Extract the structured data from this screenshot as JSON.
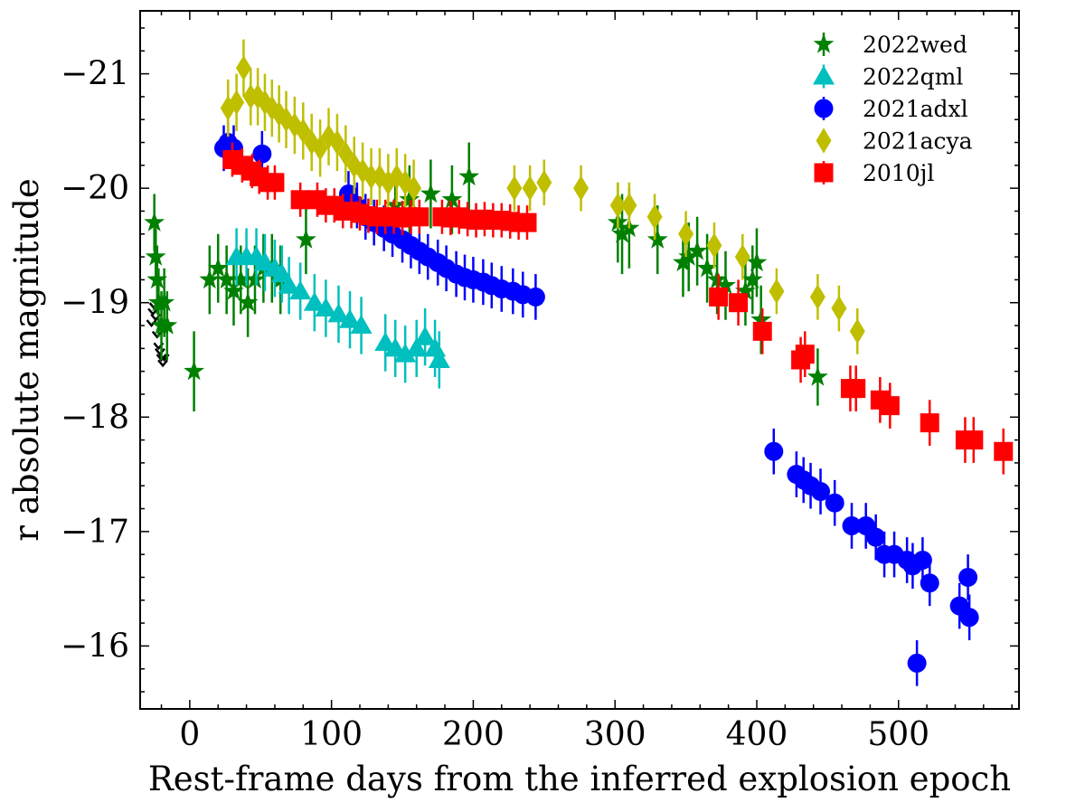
{
  "chart_data": {
    "type": "scatter",
    "xlabel": "Rest-frame days from the inferred explosion epoch",
    "ylabel": "r absolute magnitude",
    "xlim": [
      -35,
      585
    ],
    "ylim": [
      -15.45,
      -21.55
    ],
    "y_inverted": true,
    "xticks": [
      0,
      100,
      200,
      300,
      400,
      500
    ],
    "xtick_labels": [
      "0",
      "100",
      "200",
      "300",
      "400",
      "500"
    ],
    "yticks": [
      -21,
      -20,
      -19,
      -18,
      -17,
      -16
    ],
    "ytick_labels": [
      "−21",
      "−20",
      "−19",
      "−18",
      "−17",
      "−16"
    ],
    "grid": false,
    "legend_position": "top-right",
    "series": [
      {
        "name": "2022wed",
        "marker": "star",
        "color": "#008000",
        "points": [
          [
            -25,
            -19.7,
            0.25
          ],
          [
            -24,
            -19.4,
            0.25
          ],
          [
            -23,
            -19.2,
            0.3
          ],
          [
            -22,
            -19.0,
            0.3
          ],
          [
            -20,
            -18.8,
            0.3
          ],
          [
            -18,
            -19.0,
            0.3
          ],
          [
            -16,
            -18.8,
            0.3
          ],
          [
            3,
            -18.4,
            0.35
          ],
          [
            14,
            -19.2,
            0.3
          ],
          [
            20,
            -19.3,
            0.3
          ],
          [
            26,
            -19.2,
            0.3
          ],
          [
            31,
            -19.1,
            0.3
          ],
          [
            36,
            -19.2,
            0.3
          ],
          [
            41,
            -19.0,
            0.3
          ],
          [
            46,
            -19.2,
            0.3
          ],
          [
            52,
            -19.3,
            0.3
          ],
          [
            58,
            -19.3,
            0.3
          ],
          [
            64,
            -19.2,
            0.3
          ],
          [
            82,
            -19.55,
            0.3
          ],
          [
            145,
            -19.85,
            0.3
          ],
          [
            155,
            -19.9,
            0.3
          ],
          [
            170,
            -19.95,
            0.3
          ],
          [
            185,
            -19.9,
            0.3
          ],
          [
            197,
            -20.1,
            0.3
          ],
          [
            302,
            -19.7,
            0.35
          ],
          [
            305,
            -19.6,
            0.35
          ],
          [
            310,
            -19.65,
            0.35
          ],
          [
            330,
            -19.55,
            0.3
          ],
          [
            348,
            -19.35,
            0.3
          ],
          [
            352,
            -19.4,
            0.3
          ],
          [
            358,
            -19.45,
            0.3
          ],
          [
            365,
            -19.3,
            0.3
          ],
          [
            372,
            -19.2,
            0.3
          ],
          [
            378,
            -19.15,
            0.3
          ],
          [
            392,
            -19.1,
            0.3
          ],
          [
            397,
            -19.2,
            0.3
          ],
          [
            400,
            -19.35,
            0.3
          ],
          [
            403,
            -18.85,
            0.3
          ],
          [
            443,
            -18.35,
            0.25
          ]
        ]
      },
      {
        "name": "2022qml",
        "marker": "triangle",
        "color": "#00bfbf",
        "points": [
          [
            33,
            -19.4,
            0.25
          ],
          [
            40,
            -19.4,
            0.25
          ],
          [
            47,
            -19.4,
            0.25
          ],
          [
            53,
            -19.35,
            0.25
          ],
          [
            60,
            -19.3,
            0.25
          ],
          [
            65,
            -19.25,
            0.25
          ],
          [
            70,
            -19.15,
            0.25
          ],
          [
            78,
            -19.1,
            0.25
          ],
          [
            88,
            -19.0,
            0.25
          ],
          [
            96,
            -18.95,
            0.25
          ],
          [
            105,
            -18.9,
            0.25
          ],
          [
            113,
            -18.85,
            0.25
          ],
          [
            121,
            -18.8,
            0.25
          ],
          [
            138,
            -18.65,
            0.25
          ],
          [
            145,
            -18.6,
            0.25
          ],
          [
            152,
            -18.55,
            0.25
          ],
          [
            160,
            -18.6,
            0.25
          ],
          [
            166,
            -18.7,
            0.25
          ],
          [
            173,
            -18.6,
            0.25
          ],
          [
            176,
            -18.5,
            0.25
          ]
        ]
      },
      {
        "name": "2021adxl",
        "marker": "circle",
        "color": "#0000ff",
        "points": [
          [
            24,
            -20.35,
            0.2
          ],
          [
            27,
            -20.4,
            0.2
          ],
          [
            31,
            -20.35,
            0.2
          ],
          [
            51,
            -20.3,
            0.2
          ],
          [
            112,
            -19.95,
            0.2
          ],
          [
            118,
            -19.85,
            0.2
          ],
          [
            124,
            -19.75,
            0.2
          ],
          [
            130,
            -19.7,
            0.2
          ],
          [
            137,
            -19.65,
            0.2
          ],
          [
            143,
            -19.6,
            0.2
          ],
          [
            150,
            -19.55,
            0.2
          ],
          [
            156,
            -19.5,
            0.2
          ],
          [
            162,
            -19.45,
            0.2
          ],
          [
            168,
            -19.4,
            0.2
          ],
          [
            175,
            -19.35,
            0.2
          ],
          [
            181,
            -19.3,
            0.2
          ],
          [
            188,
            -19.25,
            0.2
          ],
          [
            194,
            -19.22,
            0.2
          ],
          [
            200,
            -19.2,
            0.2
          ],
          [
            207,
            -19.18,
            0.2
          ],
          [
            213,
            -19.15,
            0.2
          ],
          [
            220,
            -19.12,
            0.2
          ],
          [
            228,
            -19.1,
            0.2
          ],
          [
            235,
            -19.07,
            0.2
          ],
          [
            244,
            -19.05,
            0.2
          ],
          [
            412,
            -17.7,
            0.2
          ],
          [
            428,
            -17.5,
            0.2
          ],
          [
            433,
            -17.45,
            0.2
          ],
          [
            438,
            -17.4,
            0.2
          ],
          [
            445,
            -17.35,
            0.2
          ],
          [
            455,
            -17.25,
            0.2
          ],
          [
            467,
            -17.05,
            0.2
          ],
          [
            477,
            -17.05,
            0.2
          ],
          [
            484,
            -16.95,
            0.2
          ],
          [
            490,
            -16.8,
            0.2
          ],
          [
            497,
            -16.8,
            0.2
          ],
          [
            506,
            -16.75,
            0.2
          ],
          [
            510,
            -16.7,
            0.2
          ],
          [
            513,
            -15.85,
            0.2
          ],
          [
            517,
            -16.75,
            0.2
          ],
          [
            522,
            -16.55,
            0.2
          ],
          [
            543,
            -16.35,
            0.2
          ],
          [
            549,
            -16.6,
            0.2
          ],
          [
            550,
            -16.25,
            0.2
          ]
        ]
      },
      {
        "name": "2021acya",
        "marker": "diamond",
        "color": "#bfbf00",
        "points": [
          [
            27,
            -20.7,
            0.25
          ],
          [
            33,
            -20.75,
            0.25
          ],
          [
            38,
            -21.05,
            0.25
          ],
          [
            43,
            -20.8,
            0.25
          ],
          [
            48,
            -20.8,
            0.25
          ],
          [
            53,
            -20.75,
            0.25
          ],
          [
            58,
            -20.7,
            0.25
          ],
          [
            63,
            -20.65,
            0.25
          ],
          [
            68,
            -20.6,
            0.25
          ],
          [
            74,
            -20.55,
            0.25
          ],
          [
            80,
            -20.5,
            0.25
          ],
          [
            86,
            -20.4,
            0.25
          ],
          [
            92,
            -20.35,
            0.25
          ],
          [
            98,
            -20.45,
            0.25
          ],
          [
            104,
            -20.4,
            0.25
          ],
          [
            110,
            -20.3,
            0.25
          ],
          [
            116,
            -20.2,
            0.25
          ],
          [
            122,
            -20.15,
            0.25
          ],
          [
            128,
            -20.1,
            0.25
          ],
          [
            134,
            -20.1,
            0.25
          ],
          [
            140,
            -20.05,
            0.25
          ],
          [
            146,
            -20.1,
            0.25
          ],
          [
            152,
            -20.05,
            0.25
          ],
          [
            158,
            -20.0,
            0.25
          ],
          [
            229,
            -20.0,
            0.2
          ],
          [
            240,
            -20.0,
            0.2
          ],
          [
            250,
            -20.05,
            0.2
          ],
          [
            276,
            -20.0,
            0.2
          ],
          [
            302,
            -19.85,
            0.2
          ],
          [
            310,
            -19.85,
            0.2
          ],
          [
            328,
            -19.75,
            0.2
          ],
          [
            350,
            -19.6,
            0.2
          ],
          [
            370,
            -19.5,
            0.2
          ],
          [
            390,
            -19.4,
            0.2
          ],
          [
            414,
            -19.1,
            0.2
          ],
          [
            443,
            -19.05,
            0.2
          ],
          [
            458,
            -18.95,
            0.2
          ],
          [
            471,
            -18.75,
            0.2
          ]
        ]
      },
      {
        "name": "2010jl",
        "marker": "square",
        "color": "#ff0000",
        "points": [
          [
            30,
            -20.25,
            0.15
          ],
          [
            37,
            -20.2,
            0.15
          ],
          [
            44,
            -20.15,
            0.15
          ],
          [
            49,
            -20.1,
            0.15
          ],
          [
            55,
            -20.05,
            0.15
          ],
          [
            60,
            -20.05,
            0.15
          ],
          [
            78,
            -19.9,
            0.15
          ],
          [
            90,
            -19.9,
            0.15
          ],
          [
            96,
            -19.85,
            0.15
          ],
          [
            102,
            -19.85,
            0.15
          ],
          [
            108,
            -19.8,
            0.15
          ],
          [
            114,
            -19.8,
            0.15
          ],
          [
            120,
            -19.78,
            0.15
          ],
          [
            126,
            -19.76,
            0.15
          ],
          [
            132,
            -19.75,
            0.15
          ],
          [
            138,
            -19.75,
            0.15
          ],
          [
            144,
            -19.75,
            0.15
          ],
          [
            150,
            -19.74,
            0.15
          ],
          [
            156,
            -19.75,
            0.15
          ],
          [
            162,
            -19.75,
            0.15
          ],
          [
            178,
            -19.75,
            0.15
          ],
          [
            184,
            -19.74,
            0.15
          ],
          [
            190,
            -19.75,
            0.15
          ],
          [
            196,
            -19.73,
            0.15
          ],
          [
            202,
            -19.72,
            0.15
          ],
          [
            208,
            -19.73,
            0.15
          ],
          [
            214,
            -19.72,
            0.15
          ],
          [
            220,
            -19.72,
            0.15
          ],
          [
            226,
            -19.71,
            0.15
          ],
          [
            232,
            -19.7,
            0.15
          ],
          [
            238,
            -19.7,
            0.15
          ],
          [
            373,
            -19.05,
            0.2
          ],
          [
            387,
            -19.0,
            0.2
          ],
          [
            404,
            -18.75,
            0.2
          ],
          [
            431,
            -18.5,
            0.2
          ],
          [
            434,
            -18.55,
            0.2
          ],
          [
            466,
            -18.25,
            0.2
          ],
          [
            470,
            -18.25,
            0.2
          ],
          [
            487,
            -18.15,
            0.2
          ],
          [
            494,
            -18.1,
            0.2
          ],
          [
            522,
            -17.95,
            0.2
          ],
          [
            547,
            -17.8,
            0.2
          ],
          [
            553,
            -17.8,
            0.2
          ],
          [
            574,
            -17.7,
            0.2
          ]
        ]
      }
    ],
    "upper_limits": {
      "marker": "arrow-down",
      "color": "#000000",
      "points": [
        [
          -27,
          -18.8
        ],
        [
          -26,
          -18.9
        ],
        [
          -25,
          -18.95
        ],
        [
          -24,
          -18.85
        ],
        [
          -23,
          -18.7
        ],
        [
          -22,
          -18.6
        ],
        [
          -21,
          -18.55
        ],
        [
          -20,
          -18.5
        ],
        [
          -19,
          -18.45
        ],
        [
          -18,
          -18.5
        ]
      ]
    }
  }
}
